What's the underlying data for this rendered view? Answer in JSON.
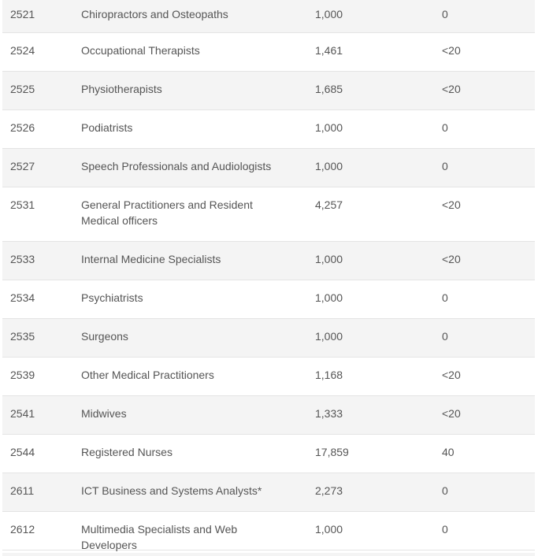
{
  "table": {
    "rows": [
      {
        "code": "2521",
        "title": "Chiropractors and Osteopaths",
        "ceiling": "1,000",
        "count": "0"
      },
      {
        "code": "2524",
        "title": "Occupational Therapists",
        "ceiling": "1,461",
        "count": "<20"
      },
      {
        "code": "2525",
        "title": "Physiotherapists",
        "ceiling": "1,685",
        "count": "<20"
      },
      {
        "code": "2526",
        "title": "Podiatrists",
        "ceiling": "1,000",
        "count": "0"
      },
      {
        "code": "2527",
        "title": "Speech Professionals and Audiologists",
        "ceiling": "1,000",
        "count": "0"
      },
      {
        "code": "2531",
        "title": "General Practitioners and Resident Medical officers",
        "ceiling": "4,257",
        "count": "<20"
      },
      {
        "code": "2533",
        "title": "Internal Medicine Specialists",
        "ceiling": "1,000",
        "count": "<20"
      },
      {
        "code": "2534",
        "title": "Psychiatrists",
        "ceiling": "1,000",
        "count": "0"
      },
      {
        "code": "2535",
        "title": "Surgeons",
        "ceiling": "1,000",
        "count": "0"
      },
      {
        "code": "2539",
        "title": "Other Medical Practitioners",
        "ceiling": "1,168",
        "count": "<20"
      },
      {
        "code": "2541",
        "title": "Midwives",
        "ceiling": "1,333",
        "count": "<20"
      },
      {
        "code": "2544",
        "title": "Registered Nurses",
        "ceiling": "17,859",
        "count": "40"
      },
      {
        "code": "2611",
        "title": "ICT Business and Systems Analysts*",
        "ceiling": "2,273",
        "count": "0"
      },
      {
        "code": "2612",
        "title": "Multimedia Specialists and Web Developers",
        "ceiling": "1,000",
        "count": "0"
      }
    ]
  }
}
